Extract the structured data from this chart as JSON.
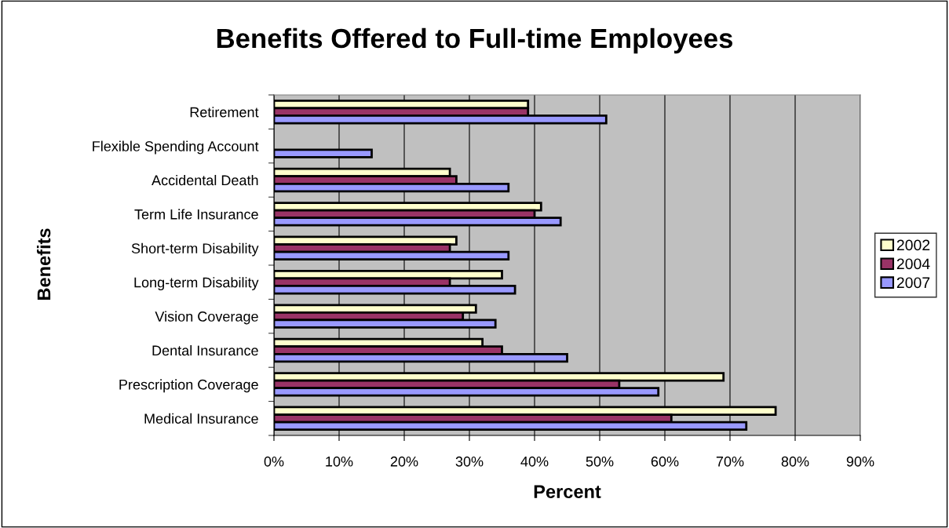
{
  "chart_data": {
    "type": "bar",
    "orientation": "horizontal",
    "title": "Benefits Offered to Full-time Employees",
    "xlabel": "Percent",
    "ylabel": "Benefits",
    "categories": [
      "Retirement",
      "Flexible Spending Account",
      "Accidental Death",
      "Term Life Insurance",
      "Short-term Disability",
      "Long-term Disability",
      "Vision Coverage",
      "Dental Insurance",
      "Prescription Coverage",
      "Medical Insurance"
    ],
    "series": [
      {
        "name": "2002",
        "color": "#ffffcc",
        "values": [
          39,
          null,
          27,
          41,
          28,
          35,
          31,
          32,
          69,
          77
        ]
      },
      {
        "name": "2004",
        "color": "#993366",
        "values": [
          39,
          null,
          28,
          40,
          27,
          27,
          29,
          35,
          53,
          61
        ]
      },
      {
        "name": "2007",
        "color": "#9999ff",
        "values": [
          51,
          15,
          36,
          44,
          36,
          37,
          34,
          45,
          59,
          72.5
        ]
      }
    ],
    "xlim": [
      0,
      90
    ],
    "xticks": [
      {
        "value": 0,
        "label": "0%"
      },
      {
        "value": 10,
        "label": "10%"
      },
      {
        "value": 20,
        "label": "20%"
      },
      {
        "value": 30,
        "label": "30%"
      },
      {
        "value": 40,
        "label": "40%"
      },
      {
        "value": 50,
        "label": "50%"
      },
      {
        "value": 60,
        "label": "60%"
      },
      {
        "value": 70,
        "label": "70%"
      },
      {
        "value": 80,
        "label": "80%"
      },
      {
        "value": 90,
        "label": "90%"
      }
    ],
    "grid": "x",
    "legend": "right"
  }
}
